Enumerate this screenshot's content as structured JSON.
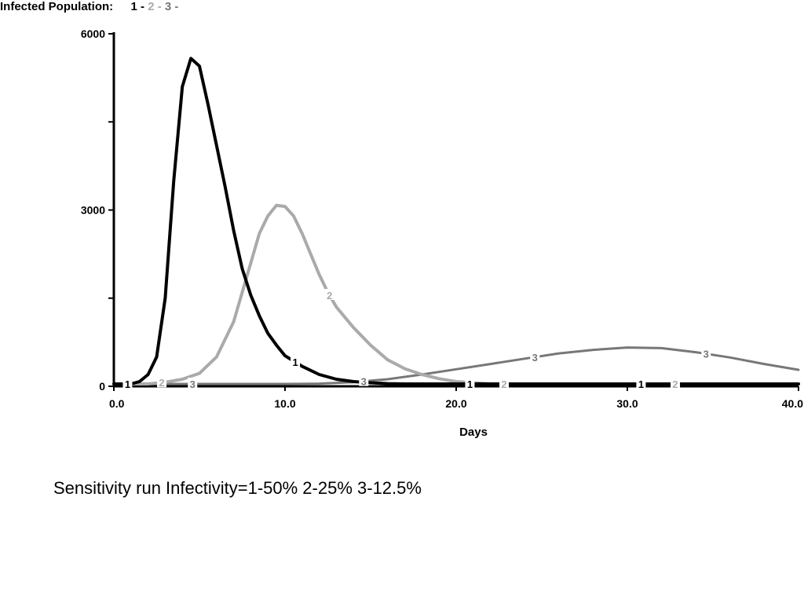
{
  "chart_data": {
    "type": "line",
    "title": "Infected Population:",
    "xlabel": "Days",
    "ylabel": "",
    "xlim": [
      0,
      40
    ],
    "ylim": [
      0,
      6000
    ],
    "x_ticks": [
      0,
      10,
      20,
      30,
      40
    ],
    "x_tick_labels": [
      "0.0",
      "10.0",
      "20.0",
      "30.0",
      "40.0"
    ],
    "y_ticks": [
      0,
      3000,
      6000
    ],
    "y_tick_labels": [
      "0",
      "3000",
      "6000"
    ],
    "y_minor_ticks": [
      1500,
      4500
    ],
    "grid": false,
    "legend_position": "top-left",
    "series": [
      {
        "name": "1",
        "color": "#000000",
        "x": [
          0,
          1,
          1.5,
          2,
          2.5,
          3,
          3.5,
          4,
          4.5,
          5,
          5.5,
          6,
          6.5,
          7,
          7.5,
          8,
          8.5,
          9,
          9.5,
          10,
          11,
          12,
          13,
          14,
          15,
          16,
          17,
          18,
          19,
          20,
          21,
          22,
          24,
          26,
          28,
          30,
          32,
          34,
          36,
          38,
          40
        ],
        "y": [
          40,
          40,
          80,
          200,
          500,
          1500,
          3500,
          5100,
          5580,
          5450,
          4800,
          4100,
          3400,
          2650,
          2000,
          1550,
          1200,
          900,
          700,
          520,
          340,
          200,
          120,
          80,
          60,
          45,
          40,
          40,
          40,
          40,
          40,
          40,
          40,
          40,
          40,
          40,
          40,
          40,
          40,
          40,
          40
        ],
        "label_x": [
          0.8,
          10.6,
          20.8,
          30.8
        ]
      },
      {
        "name": "2",
        "color": "#aaaaaa",
        "x": [
          0,
          2,
          3,
          4,
          5,
          6,
          7,
          7.5,
          8,
          8.5,
          9,
          9.5,
          10,
          10.5,
          11,
          11.5,
          12,
          12.5,
          13,
          14,
          15,
          16,
          17,
          18,
          19,
          20,
          21,
          22,
          24,
          26,
          28,
          30,
          32,
          34,
          36,
          38,
          40
        ],
        "y": [
          40,
          40,
          70,
          120,
          220,
          500,
          1100,
          1600,
          2100,
          2600,
          2900,
          3080,
          3060,
          2900,
          2600,
          2250,
          1900,
          1600,
          1350,
          1000,
          700,
          450,
          300,
          200,
          130,
          80,
          60,
          40,
          40,
          40,
          40,
          40,
          40,
          40,
          40,
          40,
          40
        ],
        "label_x": [
          2.8,
          12.6,
          22.8,
          32.8
        ]
      },
      {
        "name": "3",
        "color": "#777777",
        "x": [
          0,
          2,
          4,
          6,
          8,
          10,
          12,
          14,
          16,
          18,
          20,
          22,
          24,
          26,
          28,
          30,
          32,
          34,
          36,
          38,
          40
        ],
        "y": [
          40,
          40,
          40,
          40,
          40,
          40,
          45,
          70,
          120,
          200,
          290,
          380,
          470,
          560,
          620,
          660,
          650,
          580,
          490,
          380,
          280
        ],
        "label_x": [
          4.6,
          14.6,
          24.6,
          34.6
        ]
      }
    ]
  },
  "legend": {
    "title": "Infected Population:",
    "items": [
      {
        "label": "1",
        "color": "#000000"
      },
      {
        "label": "2",
        "color": "#aaaaaa"
      },
      {
        "label": "3",
        "color": "#777777"
      }
    ],
    "separator": "-"
  },
  "caption": "Sensitivity run  Infectivity=1-50%  2-25%   3-12.5%"
}
